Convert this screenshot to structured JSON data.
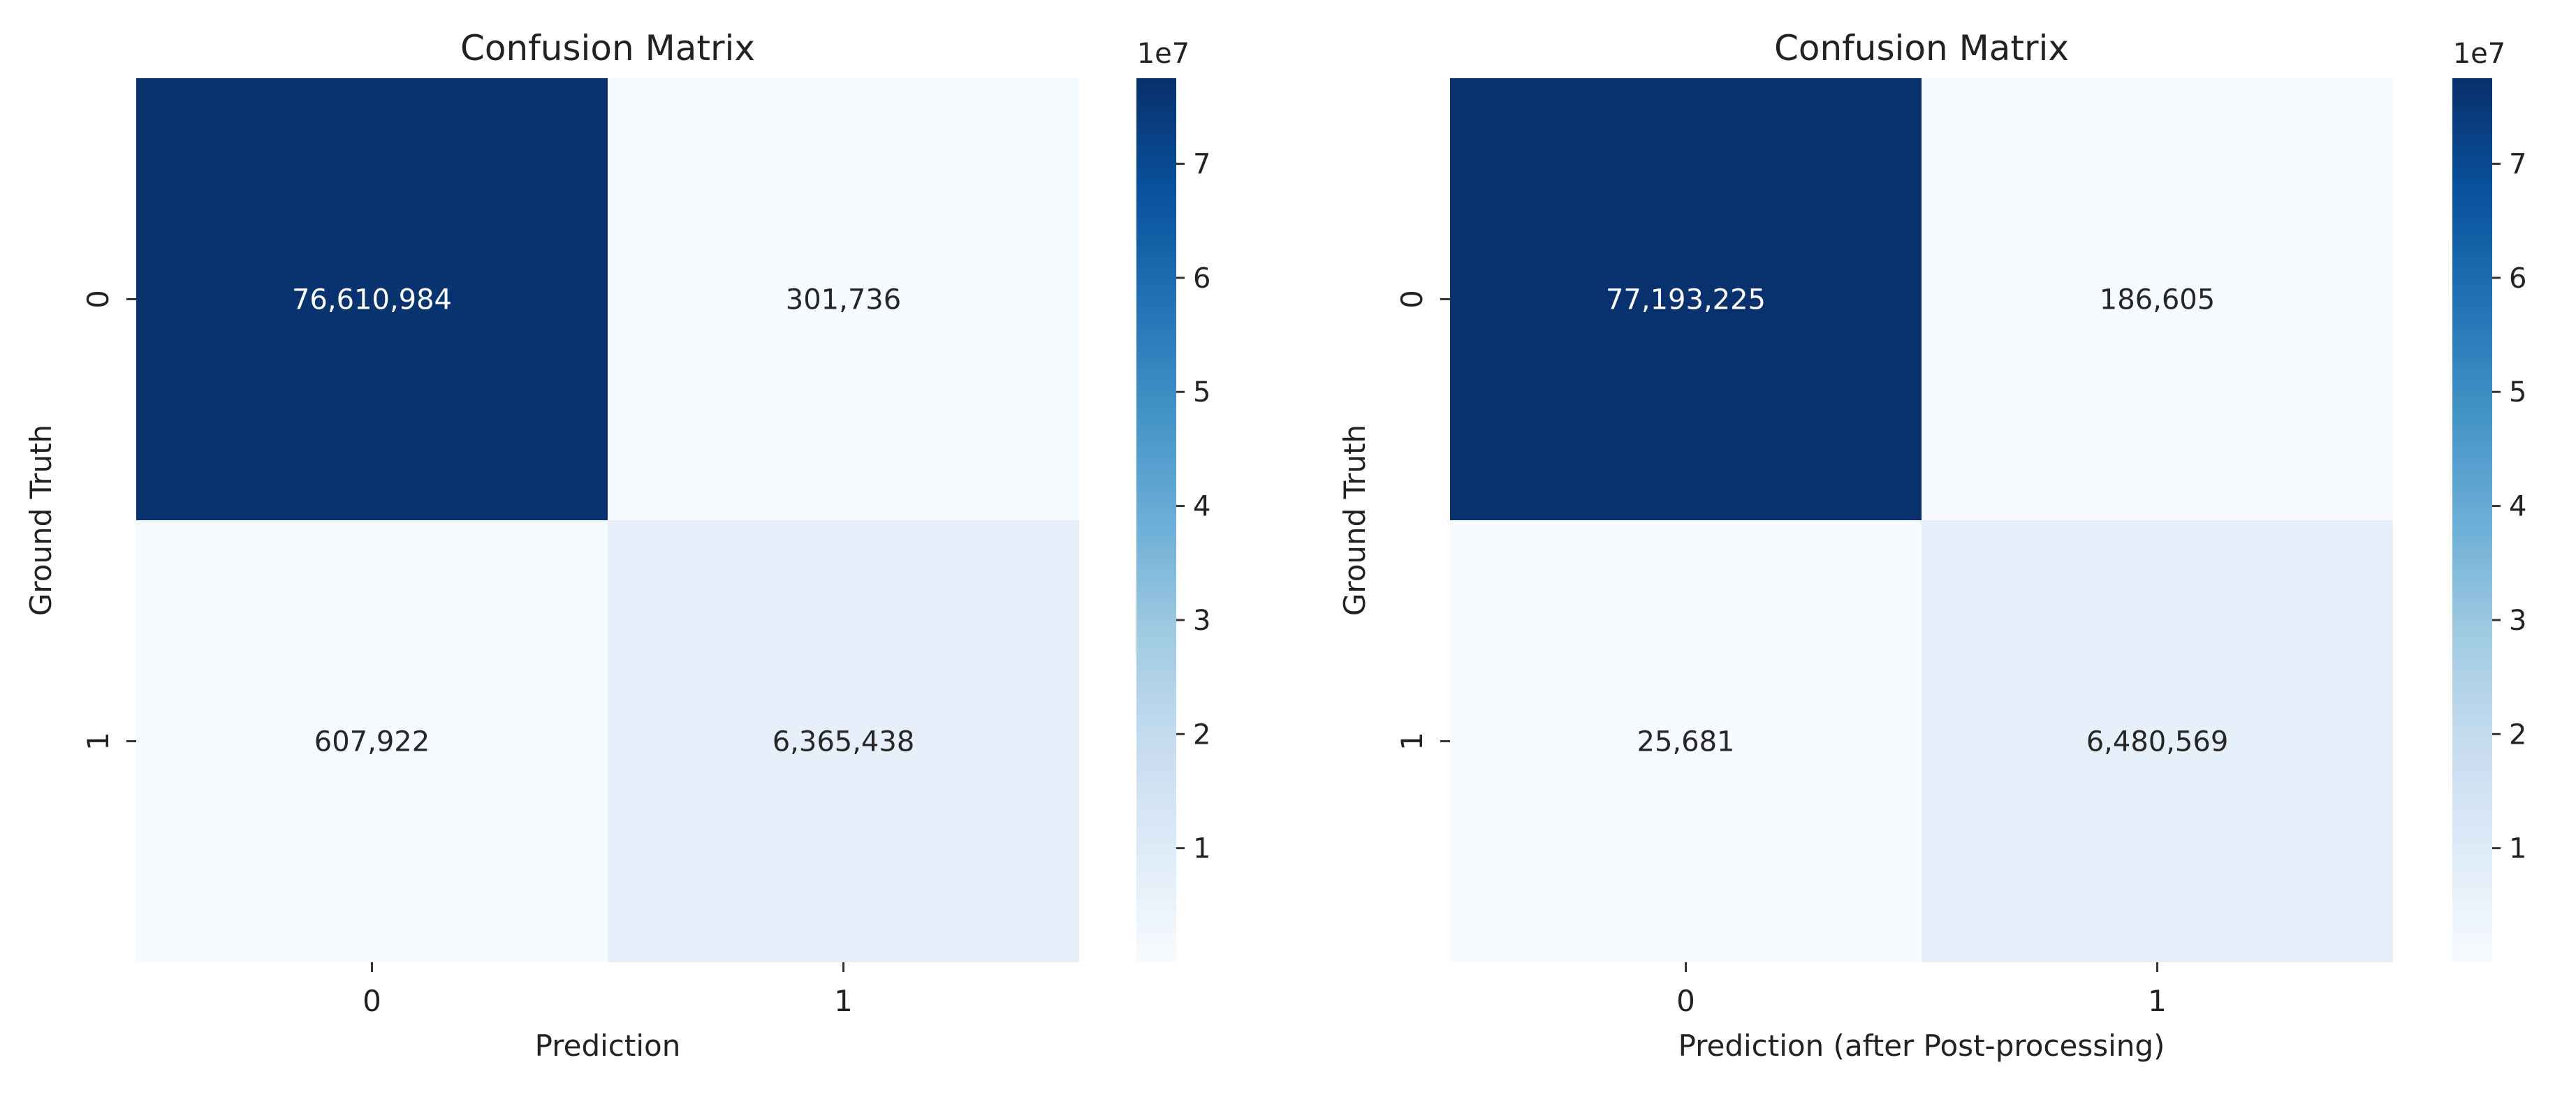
{
  "chart_data": [
    {
      "type": "heatmap",
      "title": "Confusion Matrix",
      "xlabel": "Prediction",
      "ylabel": "Ground Truth",
      "x_categories": [
        "0",
        "1"
      ],
      "y_categories": [
        "0",
        "1"
      ],
      "values": [
        [
          76610984,
          301736
        ],
        [
          607922,
          6365438
        ]
      ],
      "value_labels": [
        [
          "76,610,984",
          "301,736"
        ],
        [
          "607,922",
          "6,365,438"
        ]
      ],
      "colormap": "Blues",
      "colorbar": {
        "range": [
          0,
          77500000
        ],
        "ticks": [
          1,
          2,
          3,
          4,
          5,
          6,
          7
        ],
        "tick_labels": [
          "1",
          "2",
          "3",
          "4",
          "5",
          "6",
          "7"
        ],
        "multiplier_label": "1e7"
      }
    },
    {
      "type": "heatmap",
      "title": "Confusion Matrix",
      "xlabel": "Prediction (after Post-processing)",
      "ylabel": "Ground Truth",
      "x_categories": [
        "0",
        "1"
      ],
      "y_categories": [
        "0",
        "1"
      ],
      "values": [
        [
          77193225,
          186605
        ],
        [
          25681,
          6480569
        ]
      ],
      "value_labels": [
        [
          "77,193,225",
          "186,605"
        ],
        [
          "25,681",
          "6,480,569"
        ]
      ],
      "colormap": "Blues",
      "colorbar": {
        "range": [
          0,
          77500000
        ],
        "ticks": [
          1,
          2,
          3,
          4,
          5,
          6,
          7
        ],
        "tick_labels": [
          "1",
          "2",
          "3",
          "4",
          "5",
          "6",
          "7"
        ],
        "multiplier_label": "1e7"
      }
    }
  ]
}
